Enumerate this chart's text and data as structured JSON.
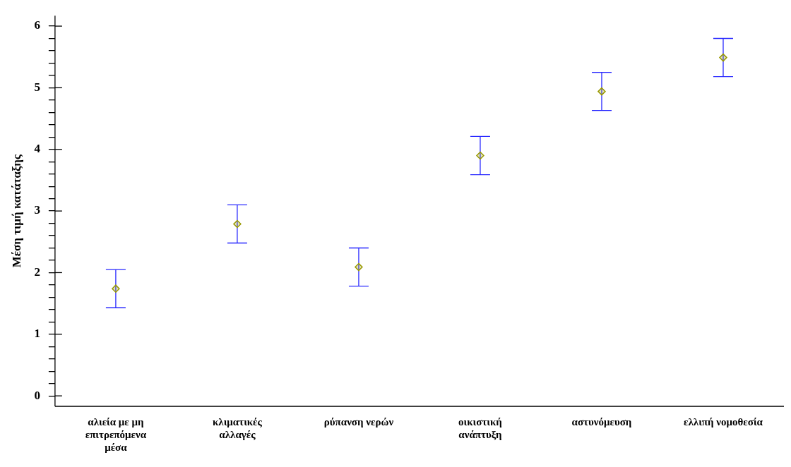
{
  "chart_data": {
    "type": "scatter",
    "ylabel": "Μέση τιμή κατάταξης",
    "categories": [
      "αλιεία με μη επιτρεπόμενα μέσα",
      "κλιματικές αλλαγές",
      "ρύπανση νερών",
      "οικιστική ανάπτυξη",
      "αστυνόμευση",
      "ελλιπή νομοθεσία"
    ],
    "series": [
      {
        "color": "#999900",
        "values": [
          1.74,
          2.79,
          2.09,
          3.9,
          4.94,
          5.49
        ],
        "errors": [
          0.31,
          0.31,
          0.31,
          0.31,
          0.31,
          0.31
        ]
      }
    ],
    "marker": "diamond",
    "grid": false,
    "legend": false,
    "ylim": [
      -0.17,
      6.17
    ],
    "yticks": [
      0,
      {
        "value": 0.2,
        "label": null
      },
      {
        "value": 0.4,
        "label": null
      },
      {
        "value": 0.6,
        "label": null
      },
      {
        "value": 0.8,
        "label": null
      },
      1,
      {
        "value": 1.2,
        "label": null
      },
      {
        "value": 1.4,
        "label": null
      },
      {
        "value": 1.6,
        "label": null
      },
      {
        "value": 1.8,
        "label": null
      },
      2,
      {
        "value": 2.2,
        "label": null
      },
      {
        "value": 2.4,
        "label": null
      },
      {
        "value": 2.6,
        "label": null
      },
      {
        "value": 2.8,
        "label": null
      },
      3,
      {
        "value": 3.2,
        "label": null
      },
      {
        "value": 3.4,
        "label": null
      },
      {
        "value": 3.6,
        "label": null
      },
      {
        "value": 3.8,
        "label": null
      },
      4,
      {
        "value": 4.2,
        "label": null
      },
      {
        "value": 4.4,
        "label": null
      },
      {
        "value": 4.6,
        "label": null
      },
      {
        "value": 4.8,
        "label": null
      },
      5,
      {
        "value": 5.2,
        "label": null
      },
      {
        "value": 5.4,
        "label": null
      },
      {
        "value": 5.6,
        "label": null
      },
      {
        "value": 5.8,
        "label": null
      },
      6
    ]
  }
}
